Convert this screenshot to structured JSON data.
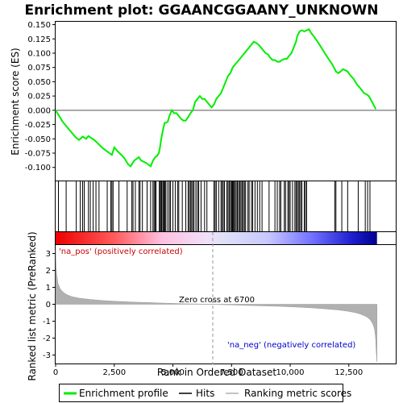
{
  "chart_data": {
    "type": "line",
    "title": "Enrichment plot: GGAANCGGAANY_UNKNOWN",
    "xlabel": "Rank in Ordered Dataset",
    "top_ylabel": "Enrichment score (ES)",
    "bottom_ylabel": "Ranked list metric (PreRanked)",
    "x_ticks": [
      0,
      2500,
      5000,
      7500,
      10000,
      12500
    ],
    "x_tick_labels": [
      "0",
      "2,500",
      "5,000",
      "7,500",
      "10,000",
      "12,500"
    ],
    "es_ticks": [
      0.15,
      0.125,
      0.1,
      0.075,
      0.05,
      0.025,
      0.0,
      -0.025,
      -0.05,
      -0.075,
      -0.1
    ],
    "es_tick_labels": [
      "0.150",
      "0.125",
      "0.100",
      "0.075",
      "0.050",
      "0.025",
      "0.000",
      "-0.025",
      "-0.050",
      "-0.075",
      "-0.100"
    ],
    "metric_ticks": [
      3,
      2,
      1,
      0,
      -1,
      -2,
      -3
    ],
    "metric_tick_labels": [
      "3",
      "2",
      "1",
      "0",
      "-1",
      "-2",
      "-3"
    ],
    "xlim": [
      0,
      14500
    ],
    "es_ylim": [
      -0.123,
      0.155
    ],
    "metric_ylim": [
      -3.5,
      3.5
    ],
    "total_genes": 13700,
    "zero_cross_rank": 6700,
    "zero_cross_label": "Zero cross at 6700",
    "pos_label": "'na_pos' (positively correlated)",
    "neg_label": "'na_neg' (negatively correlated)",
    "legend": {
      "enrichment": "Enrichment profile",
      "hits": "Hits",
      "metric": "Ranking metric scores"
    },
    "colors": {
      "es_line": "#00ee00",
      "hit": "#000000",
      "metric_fill": "#b0b0b0",
      "pos_text": "#cc0000",
      "neg_text": "#0000cc",
      "zero_line": "#999999"
    },
    "es_profile": {
      "x": [
        0,
        300,
        600,
        850,
        1000,
        1150,
        1300,
        1400,
        1500,
        1650,
        1800,
        2000,
        2200,
        2400,
        2500,
        2650,
        2800,
        2950,
        3050,
        3100,
        3200,
        3350,
        3450,
        3550,
        3650,
        3750,
        3850,
        3950,
        4050,
        4150,
        4250,
        4320,
        4400,
        4450,
        4500,
        4550,
        4600,
        4650,
        4700,
        4780,
        4850,
        4950,
        5050,
        5150,
        5250,
        5350,
        5450,
        5550,
        5650,
        5750,
        5850,
        5950,
        6050,
        6150,
        6250,
        6350,
        6450,
        6550,
        6650,
        6750,
        6850,
        6950,
        7050,
        7150,
        7250,
        7350,
        7450,
        7550,
        7650,
        7750,
        7850,
        7950,
        8050,
        8150,
        8250,
        8350,
        8450,
        8550,
        8650,
        8750,
        8850,
        8950,
        9050,
        9150,
        9250,
        9350,
        9450,
        9550,
        9650,
        9750,
        9850,
        9950,
        10050,
        10150,
        10250,
        10300,
        10400,
        10500,
        10600,
        10700,
        10800,
        10900,
        11000,
        11200,
        11400,
        11600,
        11800,
        11950,
        12050,
        12150,
        12250,
        12350,
        12450,
        12550,
        12700,
        12850,
        13000,
        13150,
        13250,
        13350,
        13450,
        13550,
        13650
      ],
      "y": [
        0.0,
        -0.02,
        -0.035,
        -0.047,
        -0.052,
        -0.046,
        -0.05,
        -0.045,
        -0.048,
        -0.052,
        -0.058,
        -0.066,
        -0.072,
        -0.078,
        -0.065,
        -0.072,
        -0.078,
        -0.085,
        -0.092,
        -0.095,
        -0.098,
        -0.088,
        -0.085,
        -0.082,
        -0.088,
        -0.09,
        -0.092,
        -0.095,
        -0.098,
        -0.088,
        -0.082,
        -0.08,
        -0.075,
        -0.065,
        -0.05,
        -0.04,
        -0.03,
        -0.022,
        -0.022,
        -0.02,
        -0.01,
        0.0,
        -0.005,
        -0.005,
        -0.01,
        -0.015,
        -0.018,
        -0.018,
        -0.012,
        -0.005,
        0.0,
        0.015,
        0.02,
        0.025,
        0.02,
        0.02,
        0.015,
        0.01,
        0.005,
        0.01,
        0.02,
        0.025,
        0.03,
        0.04,
        0.05,
        0.06,
        0.065,
        0.075,
        0.08,
        0.085,
        0.09,
        0.095,
        0.1,
        0.105,
        0.11,
        0.115,
        0.12,
        0.118,
        0.115,
        0.11,
        0.105,
        0.1,
        0.098,
        0.092,
        0.088,
        0.088,
        0.085,
        0.085,
        0.088,
        0.09,
        0.09,
        0.095,
        0.1,
        0.11,
        0.12,
        0.13,
        0.138,
        0.14,
        0.138,
        0.14,
        0.142,
        0.135,
        0.13,
        0.118,
        0.105,
        0.092,
        0.08,
        0.068,
        0.065,
        0.068,
        0.072,
        0.07,
        0.068,
        0.062,
        0.055,
        0.045,
        0.038,
        0.03,
        0.028,
        0.025,
        0.018,
        0.01,
        0.002
      ]
    },
    "hits": [
      120,
      450,
      880,
      1050,
      1150,
      1220,
      1400,
      1480,
      1600,
      1720,
      1850,
      2200,
      2350,
      2400,
      2450,
      2700,
      3050,
      3250,
      3300,
      3400,
      3550,
      3600,
      3700,
      3900,
      4050,
      4150,
      4200,
      4250,
      4280,
      4420,
      4460,
      4500,
      4530,
      4580,
      4620,
      4660,
      4700,
      4780,
      4850,
      4900,
      5000,
      5100,
      5200,
      5250,
      5400,
      5550,
      5650,
      5700,
      5750,
      5800,
      5850,
      5900,
      5980,
      6050,
      6100,
      6200,
      6350,
      6450,
      6750,
      6800,
      6850,
      6950,
      7050,
      7100,
      7150,
      7200,
      7300,
      7350,
      7400,
      7450,
      7500,
      7520,
      7550,
      7580,
      7600,
      7650,
      7700,
      7750,
      7800,
      7850,
      7900,
      7950,
      8000,
      8050,
      8100,
      8200,
      8250,
      8350,
      8400,
      8500,
      8600,
      8700,
      8800,
      9100,
      9350,
      9450,
      9550,
      9600,
      9750,
      9800,
      9900,
      9950,
      10000,
      10100,
      10200,
      10250,
      10300,
      10350,
      10400,
      10450,
      10500,
      10600,
      10650,
      10700,
      11900,
      11950,
      12200,
      12450,
      12900,
      13200,
      13300,
      13400
    ],
    "metric_curve": {
      "x": [
        0,
        20,
        50,
        100,
        200,
        350,
        500,
        700,
        1000,
        1500,
        2000,
        2500,
        3000,
        3500,
        4000,
        4500,
        5000,
        5500,
        6000,
        6500,
        6700,
        7000,
        7500,
        8000,
        8500,
        9000,
        9500,
        10000,
        10500,
        11000,
        11500,
        12000,
        12500,
        12800,
        13000,
        13200,
        13300,
        13400,
        13500,
        13560,
        13600,
        13640,
        13670,
        13700
      ],
      "y": [
        3.2,
        2.2,
        1.7,
        1.25,
        0.9,
        0.68,
        0.55,
        0.45,
        0.36,
        0.28,
        0.22,
        0.18,
        0.15,
        0.12,
        0.1,
        0.07,
        0.05,
        0.03,
        0.02,
        0.005,
        0.0,
        -0.02,
        -0.04,
        -0.06,
        -0.08,
        -0.1,
        -0.12,
        -0.15,
        -0.18,
        -0.22,
        -0.27,
        -0.33,
        -0.42,
        -0.5,
        -0.58,
        -0.7,
        -0.78,
        -0.9,
        -1.1,
        -1.3,
        -1.5,
        -2.0,
        -2.8,
        -3.4
      ]
    }
  }
}
